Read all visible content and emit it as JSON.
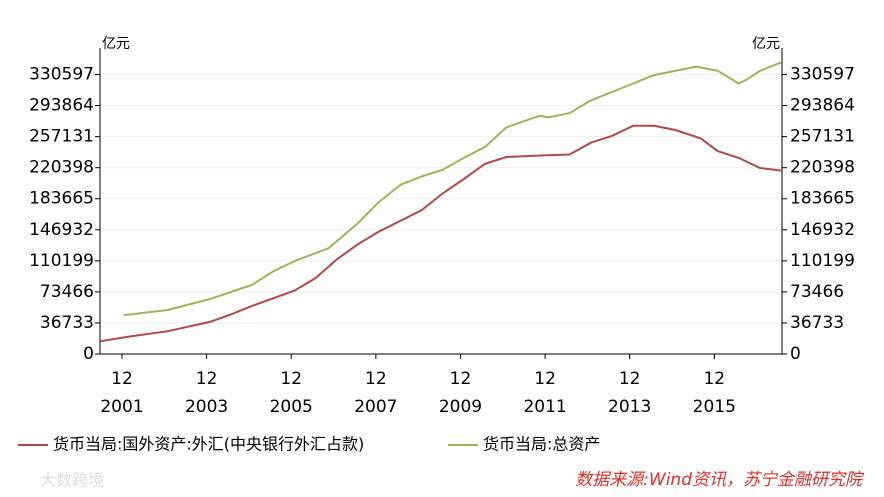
{
  "chart_data": {
    "type": "line",
    "unit_left": "亿元",
    "unit_right": "亿元",
    "xlim": [
      2001.4,
      2017.52
    ],
    "xticks": [
      {
        "value": 2001.92,
        "label": "12",
        "year": "2001"
      },
      {
        "value": 2003.92,
        "label": "12",
        "year": "2003"
      },
      {
        "value": 2005.92,
        "label": "12",
        "year": "2005"
      },
      {
        "value": 2007.92,
        "label": "12",
        "year": "2007"
      },
      {
        "value": 2009.92,
        "label": "12",
        "year": "2009"
      },
      {
        "value": 2011.92,
        "label": "12",
        "year": "2011"
      },
      {
        "value": 2013.92,
        "label": "12",
        "year": "2013"
      },
      {
        "value": 2015.92,
        "label": "12",
        "year": "2015"
      }
    ],
    "ylim": [
      0,
      362000
    ],
    "yticks": [
      0,
      36733,
      73466,
      110199,
      146932,
      183665,
      220398,
      257131,
      293864,
      330597
    ],
    "grid": true,
    "series": [
      {
        "name": "货币当局:国外资产:外汇(中央银行外汇占款)",
        "color": "#b04a4a",
        "x": [
          2001.4,
          2002.0,
          2003.0,
          2004.0,
          2004.5,
          2005.0,
          2006.0,
          2006.5,
          2007.0,
          2007.5,
          2008.0,
          2009.0,
          2009.5,
          2010.0,
          2010.5,
          2011.0,
          2011.9,
          2012.5,
          2013.0,
          2013.5,
          2014.0,
          2014.5,
          2015.0,
          2015.6,
          2016.0,
          2016.5,
          2017.0,
          2017.5
        ],
        "values": [
          15000,
          20000,
          27000,
          38000,
          47000,
          57000,
          75000,
          90000,
          112000,
          130000,
          145000,
          170000,
          190000,
          207000,
          225000,
          233000,
          235000,
          236000,
          250000,
          258000,
          270000,
          270000,
          265000,
          255000,
          240000,
          232000,
          220000,
          217000
        ]
      },
      {
        "name": "货币当局:总资产",
        "color": "#9ab55a",
        "x": [
          2001.96,
          2003.0,
          2004.0,
          2005.0,
          2005.5,
          2006.0,
          2006.8,
          2007.5,
          2008.0,
          2008.5,
          2009.0,
          2009.5,
          2010.0,
          2010.5,
          2011.0,
          2011.8,
          2012.0,
          2012.5,
          2013.0,
          2013.5,
          2014.0,
          2014.5,
          2015.0,
          2015.5,
          2016.0,
          2016.5,
          2016.7,
          2017.0,
          2017.5
        ],
        "values": [
          46000,
          52000,
          65000,
          82000,
          98000,
          110000,
          125000,
          155000,
          180000,
          200000,
          210000,
          218000,
          232000,
          245000,
          268000,
          282000,
          280000,
          285000,
          300000,
          310000,
          320000,
          330000,
          335000,
          340000,
          335000,
          320000,
          325000,
          335000,
          345000
        ]
      }
    ],
    "source": "数据来源:Wind资讯，苏宁金融研究院",
    "watermark": "大数跨境"
  }
}
